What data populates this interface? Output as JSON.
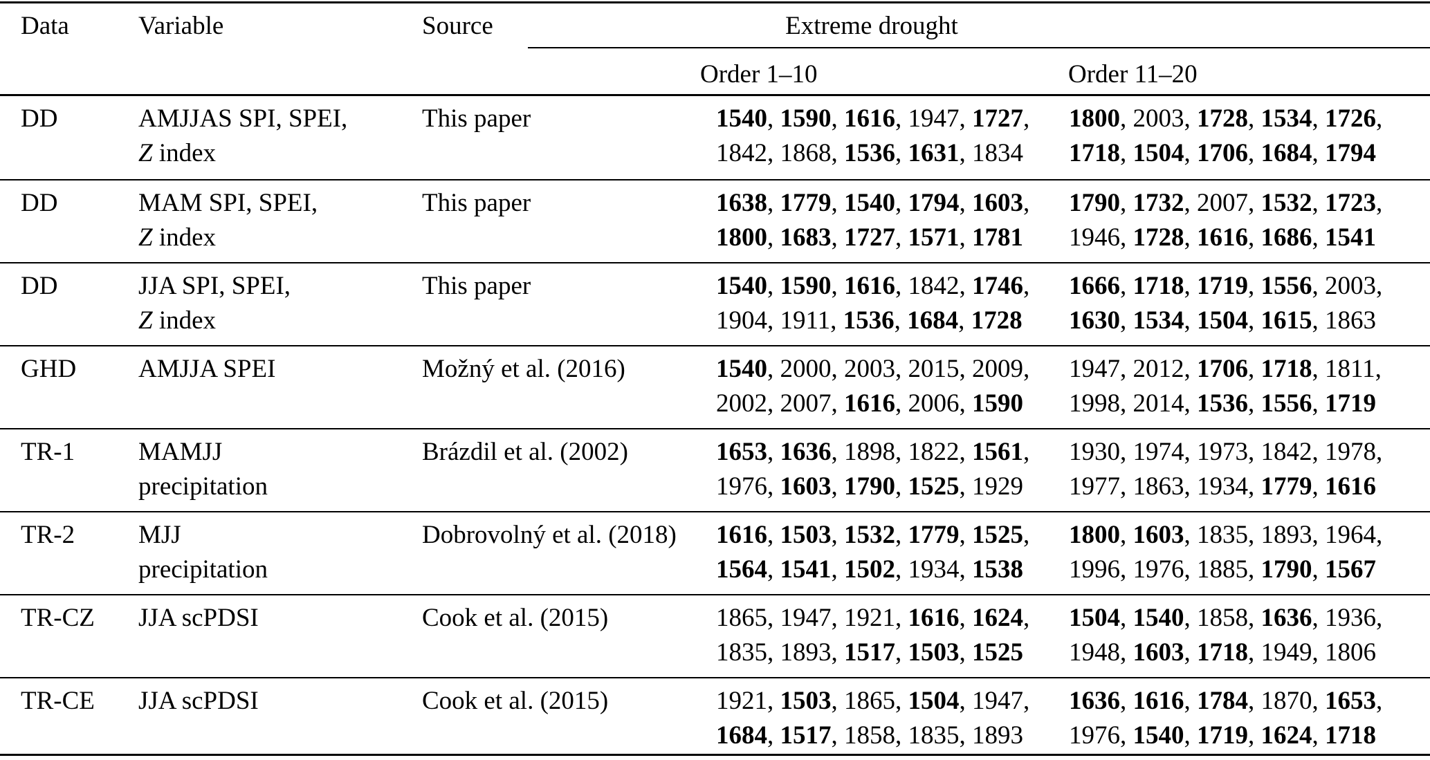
{
  "table": {
    "columns": {
      "data": "Data",
      "variable": "Variable",
      "source": "Source"
    },
    "group_header": "Extreme drought",
    "subcolumns": [
      "Order 1–10",
      "Order 11–20"
    ],
    "rows": [
      {
        "data": "DD",
        "variable": [
          {
            "t": "AMJJAS SPI, SPEI,"
          },
          {
            "i": "Z",
            "t": " index"
          }
        ],
        "source": "This paper",
        "order_1_10": [
          [
            "1540",
            1
          ],
          [
            "1590",
            1
          ],
          [
            "1616",
            1
          ],
          [
            "1947",
            0
          ],
          [
            "1727",
            1
          ],
          [
            "1842",
            0
          ],
          [
            "1868",
            0
          ],
          [
            "1536",
            1
          ],
          [
            "1631",
            1
          ],
          [
            "1834",
            0
          ]
        ],
        "order_11_20": [
          [
            "1800",
            1
          ],
          [
            "2003",
            0
          ],
          [
            "1728",
            1
          ],
          [
            "1534",
            1
          ],
          [
            "1726",
            1
          ],
          [
            "1718",
            1
          ],
          [
            "1504",
            1
          ],
          [
            "1706",
            1
          ],
          [
            "1684",
            1
          ],
          [
            "1794",
            1
          ]
        ]
      },
      {
        "data": "DD",
        "variable": [
          {
            "t": "MAM SPI, SPEI,"
          },
          {
            "i": "Z",
            "t": " index"
          }
        ],
        "source": "This paper",
        "order_1_10": [
          [
            "1638",
            1
          ],
          [
            "1779",
            1
          ],
          [
            "1540",
            1
          ],
          [
            "1794",
            1
          ],
          [
            "1603",
            1
          ],
          [
            "1800",
            1
          ],
          [
            "1683",
            1
          ],
          [
            "1727",
            1
          ],
          [
            "1571",
            1
          ],
          [
            "1781",
            1
          ]
        ],
        "order_11_20": [
          [
            "1790",
            1
          ],
          [
            "1732",
            1
          ],
          [
            "2007",
            0
          ],
          [
            "1532",
            1
          ],
          [
            "1723",
            1
          ],
          [
            "1946",
            0
          ],
          [
            "1728",
            1
          ],
          [
            "1616",
            1
          ],
          [
            "1686",
            1
          ],
          [
            "1541",
            1
          ]
        ]
      },
      {
        "data": "DD",
        "variable": [
          {
            "t": "JJA SPI, SPEI,"
          },
          {
            "i": "Z",
            "t": " index"
          }
        ],
        "source": "This paper",
        "order_1_10": [
          [
            "1540",
            1
          ],
          [
            "1590",
            1
          ],
          [
            "1616",
            1
          ],
          [
            "1842",
            0
          ],
          [
            "1746",
            1
          ],
          [
            "1904",
            0
          ],
          [
            "1911",
            0
          ],
          [
            "1536",
            1
          ],
          [
            "1684",
            1
          ],
          [
            "1728",
            1
          ]
        ],
        "order_11_20": [
          [
            "1666",
            1
          ],
          [
            "1718",
            1
          ],
          [
            "1719",
            1
          ],
          [
            "1556",
            1
          ],
          [
            "2003",
            0
          ],
          [
            "1630",
            1
          ],
          [
            "1534",
            1
          ],
          [
            "1504",
            1
          ],
          [
            "1615",
            1
          ],
          [
            "1863",
            0
          ]
        ]
      },
      {
        "data": "GHD",
        "variable": [
          {
            "t": "AMJJA SPEI"
          }
        ],
        "source": "Možný et al. (2016)",
        "order_1_10": [
          [
            "1540",
            1
          ],
          [
            "2000",
            0
          ],
          [
            "2003",
            0
          ],
          [
            "2015",
            0
          ],
          [
            "2009",
            0
          ],
          [
            "2002",
            0
          ],
          [
            "2007",
            0
          ],
          [
            "1616",
            1
          ],
          [
            "2006",
            0
          ],
          [
            "1590",
            1
          ]
        ],
        "order_11_20": [
          [
            "1947",
            0
          ],
          [
            "2012",
            0
          ],
          [
            "1706",
            1
          ],
          [
            "1718",
            1
          ],
          [
            "1811",
            0
          ],
          [
            "1998",
            0
          ],
          [
            "2014",
            0
          ],
          [
            "1536",
            1
          ],
          [
            "1556",
            1
          ],
          [
            "1719",
            1
          ]
        ]
      },
      {
        "data": "TR-1",
        "variable": [
          {
            "t": "MAMJJ"
          },
          {
            "t": "precipitation"
          }
        ],
        "source": "Brázdil et al. (2002)",
        "order_1_10": [
          [
            "1653",
            1
          ],
          [
            "1636",
            1
          ],
          [
            "1898",
            0
          ],
          [
            "1822",
            0
          ],
          [
            "1561",
            1
          ],
          [
            "1976",
            0
          ],
          [
            "1603",
            1
          ],
          [
            "1790",
            1
          ],
          [
            "1525",
            1
          ],
          [
            "1929",
            0
          ]
        ],
        "order_11_20": [
          [
            "1930",
            0
          ],
          [
            "1974",
            0
          ],
          [
            "1973",
            0
          ],
          [
            "1842",
            0
          ],
          [
            "1978",
            0
          ],
          [
            "1977",
            0
          ],
          [
            "1863",
            0
          ],
          [
            "1934",
            0
          ],
          [
            "1779",
            1
          ],
          [
            "1616",
            1
          ]
        ]
      },
      {
        "data": "TR-2",
        "variable": [
          {
            "t": "MJJ"
          },
          {
            "t": "precipitation"
          }
        ],
        "source": "Dobrovolný et al. (2018)",
        "order_1_10": [
          [
            "1616",
            1
          ],
          [
            "1503",
            1
          ],
          [
            "1532",
            1
          ],
          [
            "1779",
            1
          ],
          [
            "1525",
            1
          ],
          [
            "1564",
            1
          ],
          [
            "1541",
            1
          ],
          [
            "1502",
            1
          ],
          [
            "1934",
            0
          ],
          [
            "1538",
            1
          ]
        ],
        "order_11_20": [
          [
            "1800",
            1
          ],
          [
            "1603",
            1
          ],
          [
            "1835",
            0
          ],
          [
            "1893",
            0
          ],
          [
            "1964",
            0
          ],
          [
            "1996",
            0
          ],
          [
            "1976",
            0
          ],
          [
            "1885",
            0
          ],
          [
            "1790",
            1
          ],
          [
            "1567",
            1
          ]
        ]
      },
      {
        "data": "TR-CZ",
        "variable": [
          {
            "t": "JJA scPDSI"
          }
        ],
        "source": "Cook et al. (2015)",
        "order_1_10": [
          [
            "1865",
            0
          ],
          [
            "1947",
            0
          ],
          [
            "1921",
            0
          ],
          [
            "1616",
            1
          ],
          [
            "1624",
            1
          ],
          [
            "1835",
            0
          ],
          [
            "1893",
            0
          ],
          [
            "1517",
            1
          ],
          [
            "1503",
            1
          ],
          [
            "1525",
            1
          ]
        ],
        "order_11_20": [
          [
            "1504",
            1
          ],
          [
            "1540",
            1
          ],
          [
            "1858",
            0
          ],
          [
            "1636",
            1
          ],
          [
            "1936",
            0
          ],
          [
            "1948",
            0
          ],
          [
            "1603",
            1
          ],
          [
            "1718",
            1
          ],
          [
            "1949",
            0
          ],
          [
            "1806",
            0
          ]
        ]
      },
      {
        "data": "TR-CE",
        "variable": [
          {
            "t": "JJA scPDSI"
          }
        ],
        "source": "Cook et al. (2015)",
        "order_1_10": [
          [
            "1921",
            0
          ],
          [
            "1503",
            1
          ],
          [
            "1865",
            0
          ],
          [
            "1504",
            1
          ],
          [
            "1947",
            0
          ],
          [
            "1684",
            1
          ],
          [
            "1517",
            1
          ],
          [
            "1858",
            0
          ],
          [
            "1835",
            0
          ],
          [
            "1893",
            0
          ]
        ],
        "order_11_20": [
          [
            "1636",
            1
          ],
          [
            "1616",
            1
          ],
          [
            "1784",
            1
          ],
          [
            "1870",
            0
          ],
          [
            "1653",
            1
          ],
          [
            "1976",
            0
          ],
          [
            "1540",
            1
          ],
          [
            "1719",
            1
          ],
          [
            "1624",
            1
          ],
          [
            "1718",
            1
          ]
        ]
      }
    ]
  }
}
